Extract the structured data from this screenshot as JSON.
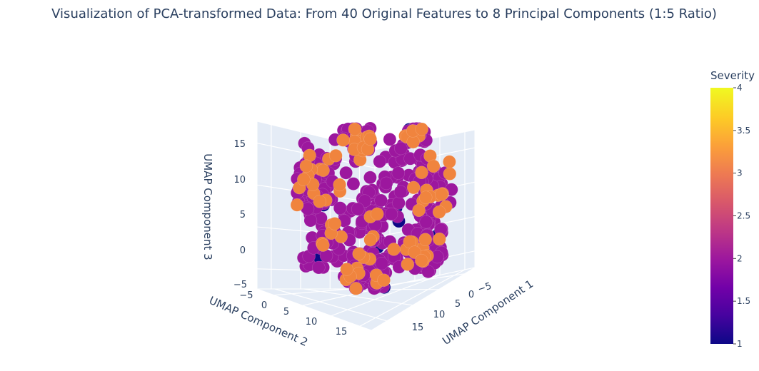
{
  "chart_data": {
    "type": "scatter",
    "title": "Visualization of PCA-transformed Data: From 40 Original Features to 8 Principal Components (1:5 Ratio)",
    "x_axis": {
      "label": "UMAP Component 1",
      "ticks": [
        "−5",
        "0",
        "5",
        "10",
        "15"
      ]
    },
    "y_axis": {
      "label": "UMAP Component 2",
      "ticks": [
        "−5",
        "0",
        "5",
        "10",
        "15"
      ]
    },
    "z_axis": {
      "label": "UMAP Component 3",
      "ticks": [
        "−5",
        "0",
        "5",
        "10",
        "15"
      ]
    },
    "color_scale": {
      "title": "Severity",
      "range": [
        1,
        4
      ],
      "ticks": [
        "1",
        "1.5",
        "2",
        "2.5",
        "3",
        "3.5",
        "4"
      ],
      "colors": [
        "#0d0887",
        "#46039f",
        "#7201a8",
        "#9c179e",
        "#bd3786",
        "#d8576b",
        "#ed7953",
        "#fb9f3a",
        "#fdca26",
        "#f0f921"
      ]
    },
    "legend_position": "right",
    "grid": true,
    "markers": {
      "count_approx": 500,
      "severity_values": [
        1,
        2,
        3
      ],
      "dominant_severity": 2
    }
  }
}
